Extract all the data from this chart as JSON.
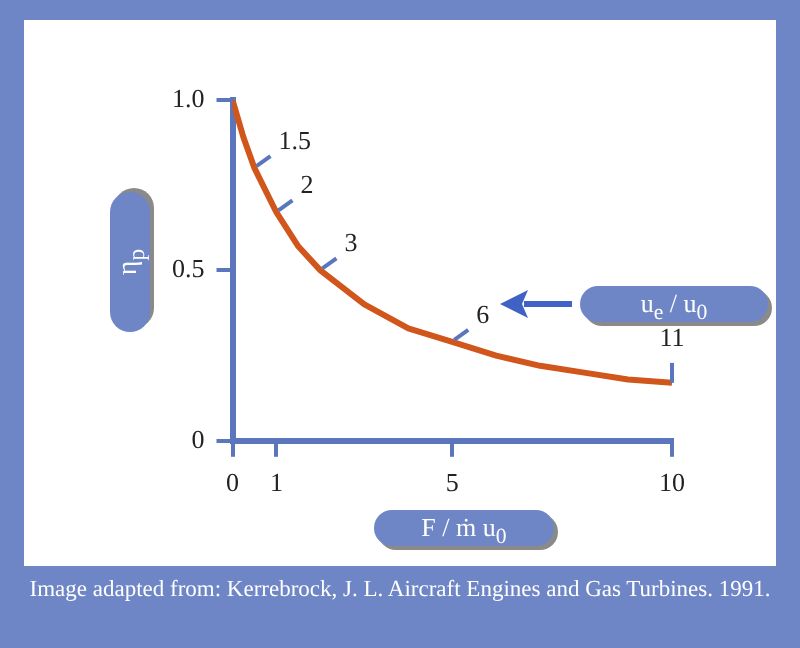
{
  "chart_data": {
    "type": "line",
    "xlabel": "F / ṁ u$_{0}$",
    "ylabel": "η$_{p}$",
    "x": [
      0,
      0.25,
      0.5,
      1,
      1.5,
      2,
      3,
      4,
      5,
      6,
      7,
      8,
      9,
      10
    ],
    "values": [
      1,
      0.89,
      0.8,
      0.67,
      0.57,
      0.5,
      0.4,
      0.33,
      0.29,
      0.25,
      0.22,
      0.2,
      0.18,
      0.17
    ],
    "color": "#d0561c",
    "marker": "none",
    "line_style": "solid",
    "grid": false,
    "legend": false,
    "xlim": [
      0,
      10
    ],
    "xticks": [
      0,
      1,
      5,
      10
    ],
    "ylim": [
      0,
      1
    ],
    "yticks": [
      0,
      0.5,
      {
        "value": 1,
        "label": "1.0"
      }
    ],
    "annotations": [
      {
        "text": "1.5",
        "x": 0.5,
        "y": 0.8
      },
      {
        "text": "2",
        "x": 1,
        "y": 0.67
      },
      {
        "text": "3",
        "x": 2,
        "y": 0.5
      },
      {
        "text": "6",
        "x": 5,
        "y": 0.29
      },
      {
        "text": "11",
        "x": 10,
        "y": 0.17
      },
      "u$_{e}$ / u$_{0}$",
      "Image adapted from: Kerrebrock, J. L. Aircraft Engines and Gas Turbines. 1991."
    ]
  }
}
